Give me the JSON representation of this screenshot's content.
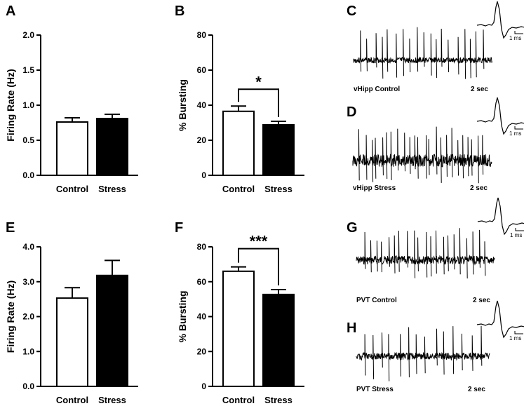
{
  "chart_data": [
    {
      "panel": "A",
      "type": "bar",
      "categories": [
        "Control",
        "Stress"
      ],
      "values": [
        0.76,
        0.81
      ],
      "errors": [
        0.06,
        0.06
      ],
      "bar_colors": [
        "#ffffff",
        "#000000"
      ],
      "ylabel": "Firing Rate (Hz)",
      "ylim": [
        0,
        2.0
      ],
      "yticks": [
        0.0,
        0.5,
        1.0,
        1.5,
        2.0
      ],
      "ytick_labels": [
        "0.0",
        "0.5",
        "1.0",
        "1.5",
        "2.0"
      ],
      "significance": null
    },
    {
      "panel": "B",
      "type": "bar",
      "categories": [
        "Control",
        "Stress"
      ],
      "values": [
        36.5,
        28.8
      ],
      "errors": [
        3.0,
        2.0
      ],
      "bar_colors": [
        "#ffffff",
        "#000000"
      ],
      "ylabel": "% Bursting",
      "ylim": [
        0,
        80
      ],
      "yticks": [
        0,
        20,
        40,
        60,
        80
      ],
      "ytick_labels": [
        "0",
        "20",
        "40",
        "60",
        "80"
      ],
      "significance": "*"
    },
    {
      "panel": "E",
      "type": "bar",
      "categories": [
        "Control",
        "Stress"
      ],
      "values": [
        2.53,
        3.18
      ],
      "errors": [
        0.3,
        0.43
      ],
      "bar_colors": [
        "#ffffff",
        "#000000"
      ],
      "ylabel": "Firing Rate (Hz)",
      "ylim": [
        0,
        4.0
      ],
      "yticks": [
        0.0,
        1.0,
        2.0,
        3.0,
        4.0
      ],
      "ytick_labels": [
        "0.0",
        "1.0",
        "2.0",
        "3.0",
        "4.0"
      ],
      "significance": null
    },
    {
      "panel": "F",
      "type": "bar",
      "categories": [
        "Control",
        "Stress"
      ],
      "values": [
        66.0,
        52.7
      ],
      "errors": [
        2.5,
        2.8
      ],
      "bar_colors": [
        "#ffffff",
        "#000000"
      ],
      "ylabel": "% Bursting",
      "ylim": [
        0,
        80
      ],
      "yticks": [
        0,
        20,
        40,
        60,
        80
      ],
      "ytick_labels": [
        "0",
        "20",
        "40",
        "60",
        "80"
      ],
      "significance": "***"
    }
  ],
  "traces": [
    {
      "panel": "C",
      "label": "vHipp Control",
      "time_scale": "2 sec",
      "waveform_scale": "1 ms",
      "noise": 4,
      "spikes": 19,
      "seed": 3
    },
    {
      "panel": "D",
      "label": "vHipp Stress",
      "time_scale": "2 sec",
      "waveform_scale": "1 ms",
      "noise": 9,
      "spikes": 24,
      "seed": 11
    },
    {
      "panel": "G",
      "label": "PVT Control",
      "time_scale": "2 sec",
      "waveform_scale": "1 ms",
      "noise": 6,
      "spikes": 21,
      "seed": 7
    },
    {
      "panel": "H",
      "label": "PVT Stress",
      "time_scale": "2 sec",
      "waveform_scale": "1 ms",
      "noise": 5,
      "spikes": 14,
      "seed": 19
    }
  ]
}
